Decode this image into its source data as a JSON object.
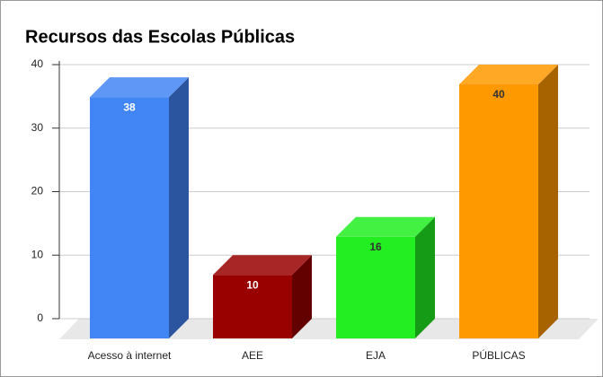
{
  "chart_data": {
    "type": "bar3d",
    "title": "Recursos das Escolas Públicas",
    "categories": [
      "Acesso à internet",
      "AEE",
      "EJA",
      "PÚBLICAS"
    ],
    "values": [
      38,
      10,
      16,
      40
    ],
    "colors": [
      "#4285f4",
      "#990000",
      "#22ee22",
      "#ff9900"
    ],
    "ylim": [
      0,
      40
    ],
    "yticks": [
      0,
      10,
      20,
      30,
      40
    ],
    "grid": true
  }
}
